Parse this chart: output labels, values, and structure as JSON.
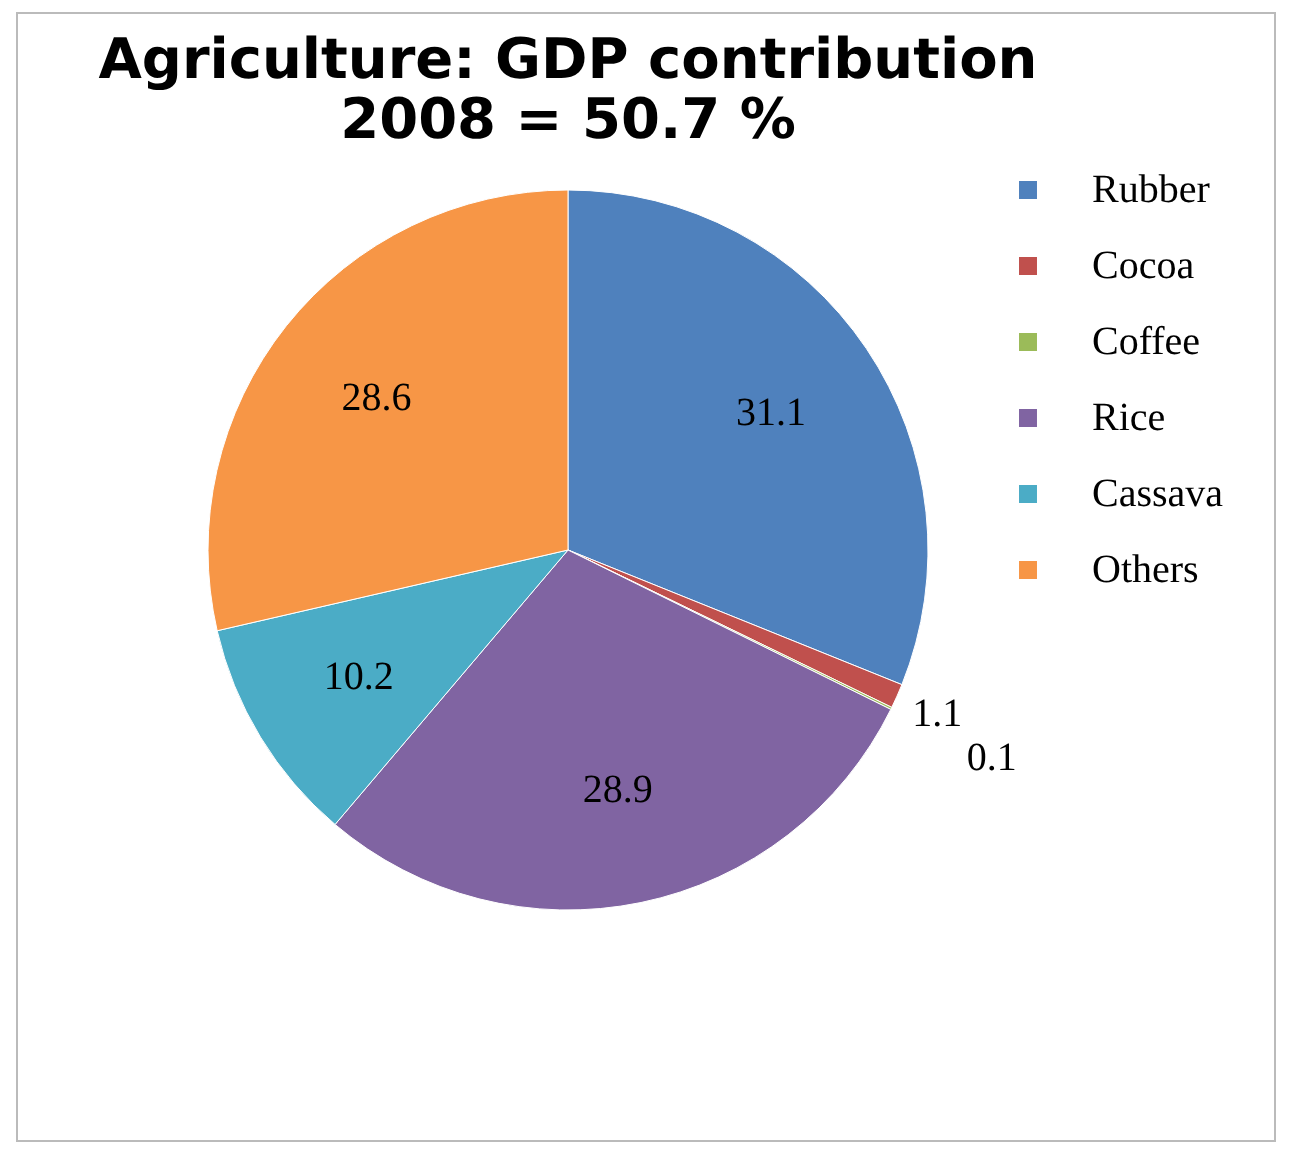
{
  "chart_data": {
    "type": "pie",
    "title": "Agriculture: GDP contribution\n2008 = 50.7 %",
    "categories": [
      "Rubber",
      "Cocoa",
      "Coffee",
      "Rice",
      "Cassava",
      "Others"
    ],
    "values": [
      31.1,
      1.1,
      0.1,
      28.9,
      10.2,
      28.6
    ],
    "colors": [
      "#4f81bd",
      "#c0504d",
      "#9bbb59",
      "#8064a2",
      "#4bacc6",
      "#f79646"
    ],
    "data_labels": true,
    "legend": "right"
  }
}
